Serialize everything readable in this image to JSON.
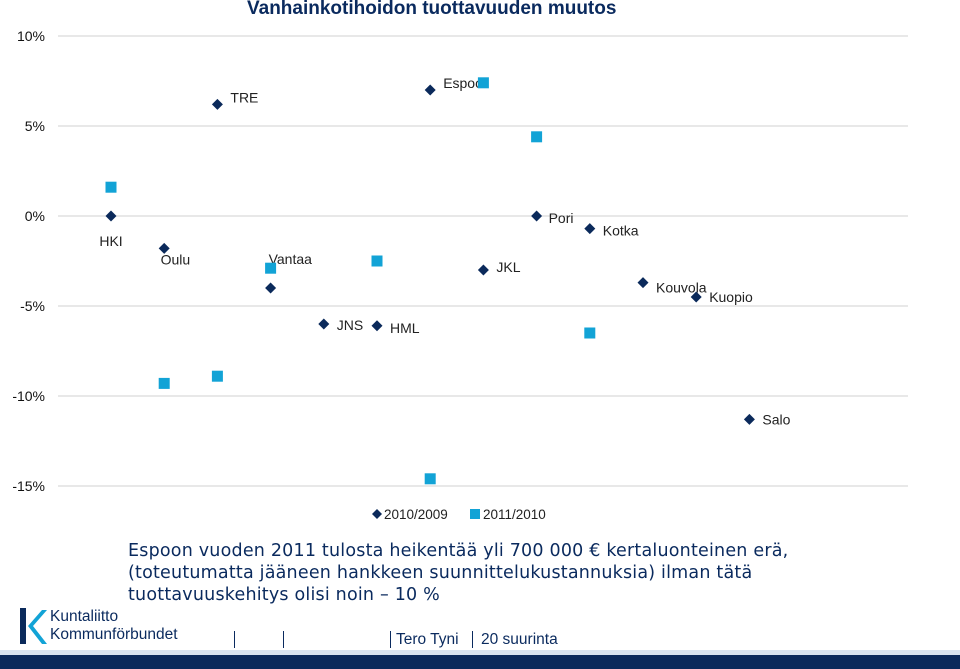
{
  "chart_data": {
    "type": "scatter",
    "title": "Vanhainkotihoidon tuottavuuden muutos",
    "y_ticks": [
      "10%",
      "5%",
      "0%",
      "-5%",
      "-10%",
      "-15%"
    ],
    "y_tick_values": [
      10,
      5,
      0,
      -5,
      -10,
      -15
    ],
    "ylim": [
      -15,
      10
    ],
    "grid": true,
    "legend_position": "bottom",
    "x": [
      "HKI",
      "Oulu",
      "TRE",
      "Vantaa",
      "JNS",
      "HML",
      "Espoo",
      "JKL",
      "Pori",
      "Kotka",
      "Kouvola",
      "Kuopio",
      "Salo"
    ],
    "series": [
      {
        "name": "2010/2009",
        "marker": "diamond",
        "color": "#0b2a5b",
        "values": [
          0.0,
          -1.8,
          6.2,
          -4.0,
          -6.0,
          -6.1,
          7.0,
          -3.0,
          0.0,
          -0.7,
          -3.7,
          -4.5,
          -11.3
        ]
      },
      {
        "name": "2011/2010",
        "marker": "square",
        "color": "#12a3d6",
        "values": [
          1.6,
          -9.3,
          -8.9,
          -2.9,
          null,
          -2.5,
          -14.6,
          7.4,
          4.4,
          -6.5,
          null,
          null,
          null
        ]
      }
    ],
    "point_labels": [
      "HKI",
      "Oulu",
      "TRE",
      "Vantaa",
      "JNS",
      "HML",
      "Espoo",
      "JKL",
      "Pori",
      "Kotka",
      "Kouvola",
      "Kuopio",
      "Salo"
    ]
  },
  "note_lines": [
    "Espoon vuoden 2011 tulosta heikentää yli 700 000 € kertaluonteinen erä,",
    "(toteutumatta jääneen hankkeen suunnittelukustannuksia) ilman tätä",
    "tuottavuuskehitys olisi noin – 10 %"
  ],
  "logo": {
    "line1": "Kuntaliitto",
    "line2": "Kommunförbundet"
  },
  "footer": {
    "author": "Tero Tyni",
    "page": "20 suurinta"
  },
  "colors": {
    "accent": "#0b2a5b",
    "series2": "#12a3d6"
  }
}
